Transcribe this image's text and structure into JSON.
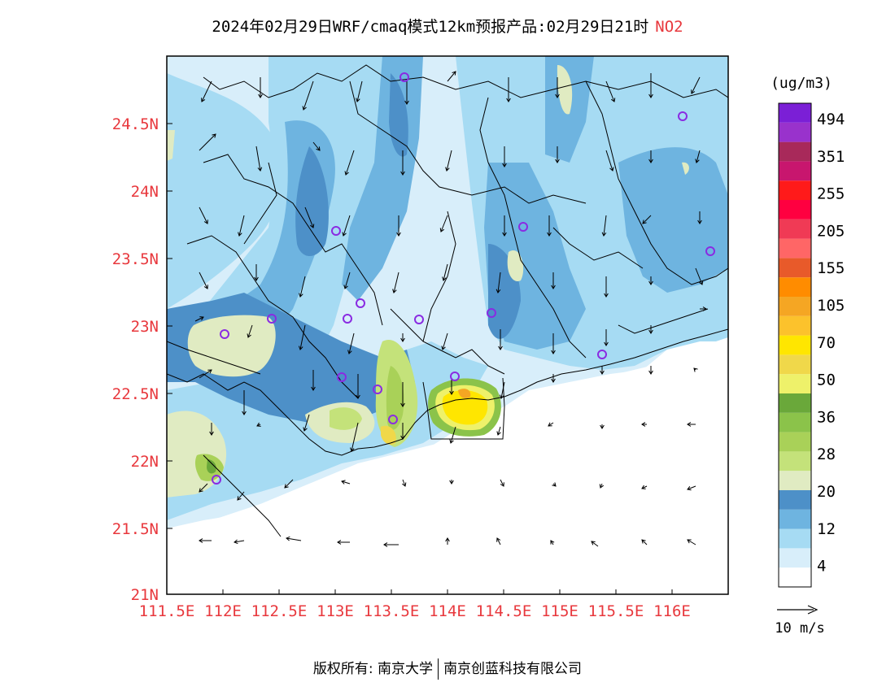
{
  "header": {
    "title": "2024年02月29日WRF/cmaq模式12km预报产品:02月29日21时",
    "species": "NO2"
  },
  "axes": {
    "x_ticks": [
      "111.5E",
      "112E",
      "112.5E",
      "113E",
      "113.5E",
      "114E",
      "114.5E",
      "115E",
      "115.5E",
      "116E"
    ],
    "y_ticks": [
      "24.5N",
      "24N",
      "23.5N",
      "23N",
      "22.5N",
      "22N",
      "21.5N",
      "21N"
    ],
    "tick_color": "#e8383d"
  },
  "legend": {
    "unit": "(ug/m3)",
    "labels": [
      "494",
      "351",
      "255",
      "205",
      "155",
      "105",
      "70",
      "50",
      "36",
      "28",
      "20",
      "12",
      "4"
    ],
    "colors": [
      "#ffffff",
      "#d8eefa",
      "#a6dbf3",
      "#6eb4e0",
      "#4d90c8",
      "#e0ebc2",
      "#c4e27a",
      "#a9d158",
      "#8bc34a",
      "#6aa83a",
      "#eef16a",
      "#f0d84a",
      "#ffe600",
      "#fcc22c",
      "#f5a623",
      "#ff8c00",
      "#e85a2a",
      "#ff6666",
      "#f03a55",
      "#ff0040",
      "#ff1a1a",
      "#c8166e",
      "#a8295a",
      "#9932cc",
      "#7b1fd6"
    ]
  },
  "wind_scale": {
    "label": "10 m/s"
  },
  "footer": {
    "left": "版权所有: 南京大学",
    "right": "南京创蓝科技有限公司"
  }
}
